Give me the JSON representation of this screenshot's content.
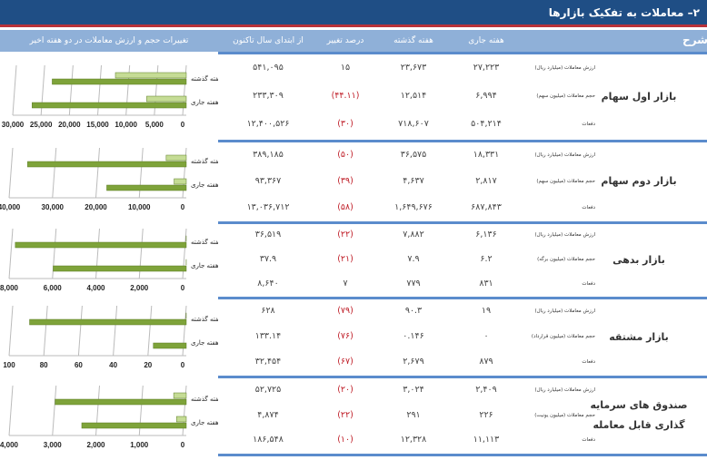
{
  "title": "۲– معاملات به تفکیک بازارها",
  "headers": {
    "sharh": "شرح",
    "current": "هفته جاری",
    "last": "هفته گذشته",
    "pct": "درصد تغییر",
    "ytd": "از ابتدای سال تاکنون",
    "chart": "تغییرات حجم و ارزش معاملات در دو هفته اخیر"
  },
  "markets": [
    {
      "name": "بازار اول سهام",
      "rows": [
        {
          "label": "ارزش معاملات (میلیارد ریال)",
          "current": "۲۷,۲۲۳",
          "last": "۲۳,۶۷۳",
          "pct": "۱۵",
          "neg": false,
          "ytd": "۵۴۱,۰۹۵"
        },
        {
          "label": "حجم معاملات (میلیون سهم)",
          "current": "۶,۹۹۴",
          "last": "۱۲,۵۱۴",
          "pct": "(۴۴.۱۱)",
          "neg": true,
          "ytd": "۲۳۳,۳۰۹"
        },
        {
          "label": "دفعات",
          "current": "۵۰۴,۲۱۴",
          "last": "۷۱۸,۶۰۷",
          "pct": "(۳۰)",
          "neg": true,
          "ytd": "۱۲,۴۰۰,۵۲۶"
        }
      ]
    },
    {
      "name": "بازار دوم سهام",
      "rows": [
        {
          "label": "ارزش معاملات (میلیارد ریال)",
          "current": "۱۸,۳۳۱",
          "last": "۳۶,۵۷۵",
          "pct": "(۵۰)",
          "neg": true,
          "ytd": "۳۸۹,۱۸۵"
        },
        {
          "label": "حجم معاملات (میلیون سهم)",
          "current": "۲,۸۱۷",
          "last": "۴,۶۳۷",
          "pct": "(۳۹)",
          "neg": true,
          "ytd": "۹۳,۳۶۷"
        },
        {
          "label": "دفعات",
          "current": "۶۸۷,۸۴۳",
          "last": "۱,۶۴۹,۶۷۶",
          "pct": "(۵۸)",
          "neg": true,
          "ytd": "۱۳,۰۳۶,۷۱۲"
        }
      ]
    },
    {
      "name": "بازار بدهی",
      "rows": [
        {
          "label": "ارزش معاملات (میلیارد ریال)",
          "current": "۶,۱۳۶",
          "last": "۷,۸۸۲",
          "pct": "(۲۲)",
          "neg": true,
          "ytd": "۳۶,۵۱۹"
        },
        {
          "label": "حجم معاملات (میلیون برگه)",
          "current": "۶.۲",
          "last": "۷.۹",
          "pct": "(۲۱)",
          "neg": true,
          "ytd": "۳۷.۹"
        },
        {
          "label": "دفعات",
          "current": "۸۳۱",
          "last": "۷۷۹",
          "pct": "۷",
          "neg": false,
          "ytd": "۸,۶۴۰"
        }
      ]
    },
    {
      "name": "بازار مشتقه",
      "rows": [
        {
          "label": "ارزش معاملات (میلیارد ریال)",
          "current": "۱۹",
          "last": "۹۰.۳",
          "pct": "(۷۹)",
          "neg": true,
          "ytd": "۶۲۸"
        },
        {
          "label": "حجم معاملات (میلیون قرارداد)",
          "current": "۰",
          "last": "۰.۱۴۶",
          "pct": "(۷۶)",
          "neg": true,
          "ytd": "۱۳۳.۱۴"
        },
        {
          "label": "دفعات",
          "current": "۸۷۹",
          "last": "۲,۶۷۹",
          "pct": "(۶۷)",
          "neg": true,
          "ytd": "۳۲,۴۵۴"
        }
      ]
    },
    {
      "name": "صندوق های سرمایه گذاری قابل معامله",
      "rows": [
        {
          "label": "ارزش معاملات (میلیارد ریال)",
          "current": "۲,۴۰۹",
          "last": "۳,۰۲۴",
          "pct": "(۲۰)",
          "neg": true,
          "ytd": "۵۲,۷۲۵"
        },
        {
          "label": "حجم معاملات (میلیون یونیت)",
          "current": "۲۲۶",
          "last": "۲۹۱",
          "pct": "(۲۲)",
          "neg": true,
          "ytd": "۴,۸۷۴"
        },
        {
          "label": "دفعات",
          "current": "۱۱,۱۱۳",
          "last": "۱۲,۳۲۸",
          "pct": "(۱۰)",
          "neg": true,
          "ytd": "۱۸۶,۵۴۸"
        }
      ]
    }
  ],
  "chart_data": [
    {
      "type": "bar",
      "categories": [
        "هفته گذشته",
        "هفته جاری"
      ],
      "series": [
        {
          "name": "حجم",
          "values": [
            12514,
            6994
          ]
        },
        {
          "name": "ارزش",
          "values": [
            23673,
            27223
          ]
        }
      ],
      "ticks": [
        "30,000",
        "25,000",
        "20,000",
        "15,000",
        "10,000",
        "5,000",
        "0"
      ],
      "xlim": [
        0,
        30000
      ]
    },
    {
      "type": "bar",
      "categories": [
        "هفته گذشته",
        "هفته جاری"
      ],
      "series": [
        {
          "name": "حجم",
          "values": [
            4637,
            2817
          ]
        },
        {
          "name": "ارزش",
          "values": [
            36575,
            18331
          ]
        }
      ],
      "ticks": [
        "40,000",
        "30,000",
        "20,000",
        "10,000",
        "0"
      ],
      "xlim": [
        0,
        40000
      ]
    },
    {
      "type": "bar",
      "categories": [
        "هفته گذشته",
        "هفته جاری"
      ],
      "series": [
        {
          "name": "حجم",
          "values": [
            7.9,
            6.2
          ]
        },
        {
          "name": "ارزش",
          "values": [
            7882,
            6136
          ]
        }
      ],
      "ticks": [
        "8,000",
        "6,000",
        "4,000",
        "2,000",
        "0"
      ],
      "xlim": [
        0,
        8000
      ]
    },
    {
      "type": "bar",
      "categories": [
        "هفته گذشته",
        "هفته جاری"
      ],
      "series": [
        {
          "name": "حجم",
          "values": [
            0.146,
            0
          ]
        },
        {
          "name": "ارزش",
          "values": [
            90.3,
            19
          ]
        }
      ],
      "ticks": [
        "100",
        "80",
        "60",
        "40",
        "20",
        "0"
      ],
      "xlim": [
        0,
        100
      ]
    },
    {
      "type": "bar",
      "categories": [
        "هفته گذشته",
        "هفته جاری"
      ],
      "series": [
        {
          "name": "حجم",
          "values": [
            291,
            226
          ]
        },
        {
          "name": "ارزش",
          "values": [
            3024,
            2409
          ]
        }
      ],
      "ticks": [
        "4,000",
        "3,000",
        "2,000",
        "1,000",
        "0"
      ],
      "xlim": [
        0,
        4000
      ]
    }
  ]
}
